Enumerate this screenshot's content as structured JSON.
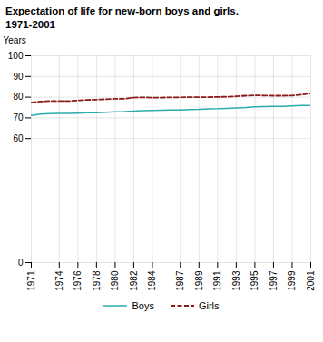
{
  "chart_data": {
    "type": "line",
    "title": "Expectation of life for new-born boys and girls.",
    "subtitle": "1971-2001",
    "ylabel": "Years",
    "x": [
      1971,
      1972,
      1973,
      1974,
      1975,
      1976,
      1977,
      1978,
      1979,
      1980,
      1981,
      1982,
      1983,
      1984,
      1985,
      1986,
      1987,
      1988,
      1989,
      1990,
      1991,
      1992,
      1993,
      1994,
      1995,
      1996,
      1997,
      1998,
      1999,
      2000,
      2001
    ],
    "series": [
      {
        "name": "Boys",
        "color": "#2aacac",
        "line_style": "solid",
        "values": [
          71.2,
          71.8,
          72.0,
          72.1,
          72.1,
          72.3,
          72.5,
          72.5,
          72.7,
          72.9,
          73.0,
          73.3,
          73.5,
          73.6,
          73.7,
          73.8,
          73.8,
          74.0,
          74.1,
          74.3,
          74.4,
          74.6,
          74.8,
          75.0,
          75.3,
          75.4,
          75.5,
          75.6,
          75.8,
          76.0,
          76.0
        ]
      },
      {
        "name": "Girls",
        "color": "#8b1a1a",
        "line_style": "dashed",
        "values": [
          77.4,
          77.9,
          78.1,
          78.1,
          78.1,
          78.4,
          78.7,
          78.8,
          79.0,
          79.2,
          79.2,
          79.8,
          79.9,
          79.8,
          79.8,
          79.9,
          79.9,
          80.0,
          80.0,
          80.0,
          80.1,
          80.2,
          80.4,
          80.7,
          80.9,
          80.8,
          80.7,
          80.7,
          80.8,
          81.2,
          81.8
        ]
      }
    ],
    "xlim": [
      1971,
      2001
    ],
    "xticks": [
      1971,
      1974,
      1976,
      1978,
      1980,
      1982,
      1984,
      1987,
      1989,
      1991,
      1993,
      1995,
      1997,
      1999,
      2001
    ],
    "ylim": [
      0,
      100
    ],
    "yticks": [
      0,
      60,
      70,
      80,
      90,
      100
    ],
    "grid": true,
    "legend": "bottom"
  }
}
